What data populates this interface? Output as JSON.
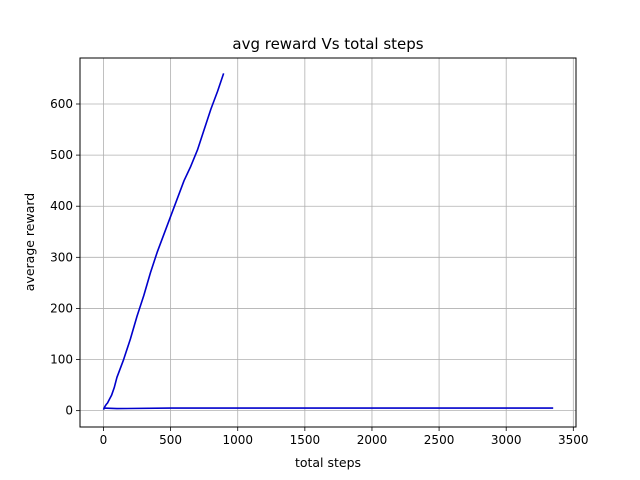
{
  "chart_data": {
    "type": "line",
    "title": "avg reward Vs total steps",
    "xlabel": "total steps",
    "ylabel": "average reward",
    "xlim": [
      -175,
      3520
    ],
    "ylim": [
      -32,
      690
    ],
    "xticks": [
      0,
      500,
      1000,
      1500,
      2000,
      2500,
      3000,
      3500
    ],
    "xtick_labels": [
      "0",
      "500",
      "1000",
      "1500",
      "2000",
      "2500",
      "3000",
      "3500"
    ],
    "yticks": [
      0,
      100,
      200,
      300,
      400,
      500,
      600
    ],
    "ytick_labels": [
      "0",
      "100",
      "200",
      "300",
      "400",
      "500",
      "600"
    ],
    "grid": true,
    "line_color": "#0000cc",
    "series": [
      {
        "x": [
          0,
          10,
          20,
          30,
          40,
          60,
          80,
          100,
          150,
          200,
          250,
          300,
          350,
          400,
          450,
          500,
          550,
          600,
          650,
          700,
          750,
          800,
          850,
          895
        ],
        "values": [
          2,
          8,
          12,
          15,
          20,
          30,
          45,
          65,
          100,
          140,
          185,
          225,
          270,
          310,
          345,
          380,
          415,
          450,
          478,
          510,
          550,
          590,
          625,
          660
        ]
      },
      {
        "x": [
          0,
          100,
          500,
          1000,
          2000,
          3000,
          3350
        ],
        "values": [
          5,
          4,
          5,
          5,
          5,
          5,
          5
        ]
      }
    ]
  }
}
